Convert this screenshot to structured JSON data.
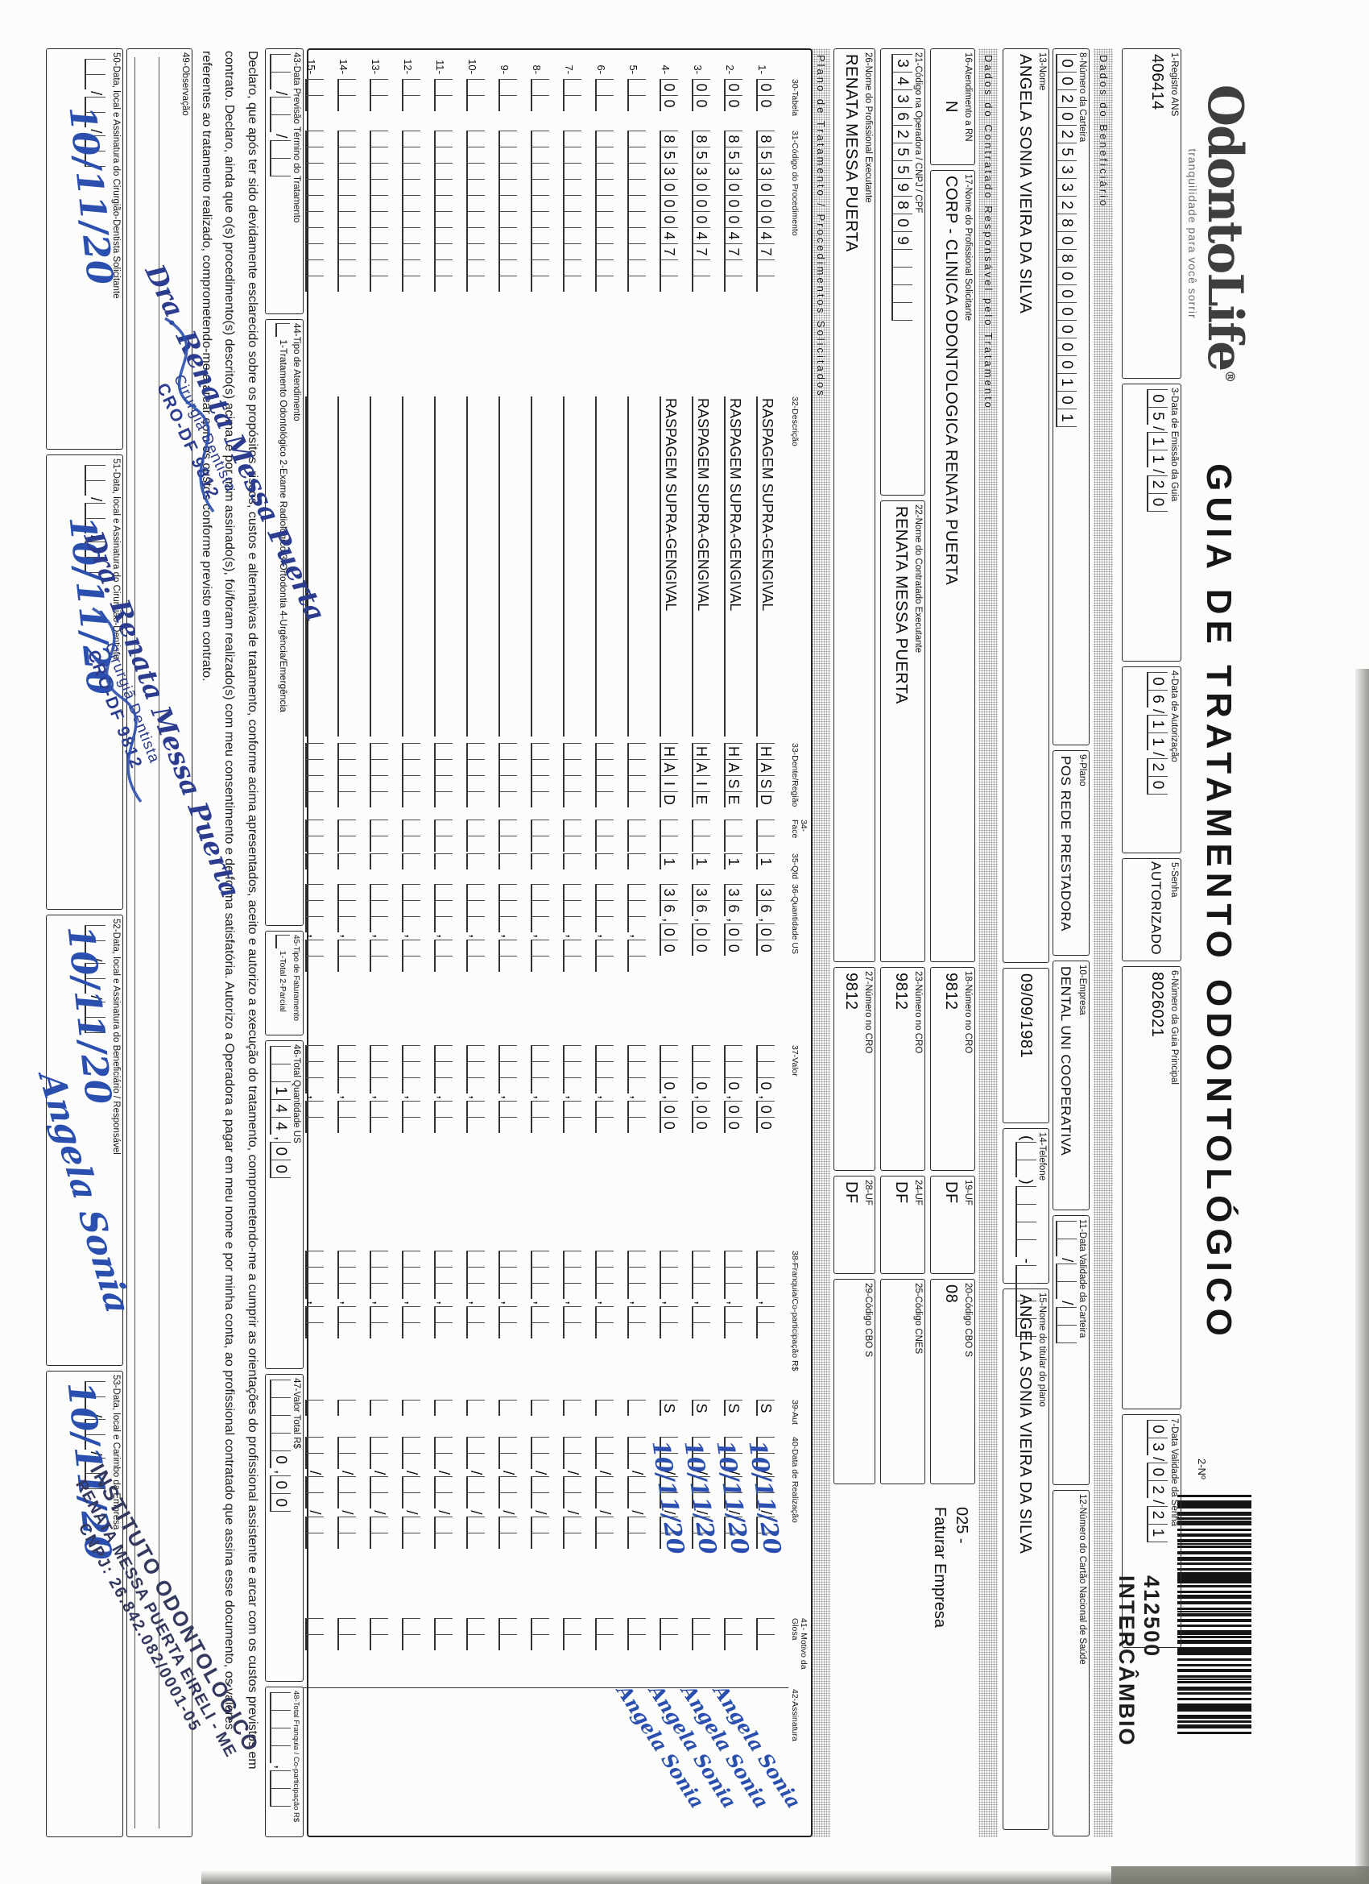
{
  "header": {
    "logo": "OdontoLife",
    "logo_reg": "®",
    "tagline": "tranquilidade para você sorrir",
    "title": "GUIA DE TRATAMENTO ODONTOLÓGICO",
    "form_no_label": "2-Nº",
    "form_code": "412500",
    "form_code2": "INTERCÂMBIO"
  },
  "row_a": {
    "f1_label": "1-Registro ANS",
    "f1_value": "406414",
    "f3_label": "3-Data de Emissão da Guia",
    "f3_value": "05/11/20",
    "f4_label": "4-Data de Autorização",
    "f4_value": "06/11/20",
    "f5_label": "5-Senha",
    "f5_value": "AUTORIZADO",
    "f6_label": "6-Número da Guia Principal",
    "f6_value": "8026021",
    "f7_label": "7-Data Validade da Senha",
    "f7_value": "03/02/21"
  },
  "section_beneficiario": "Dados do Beneficiário",
  "row_b": {
    "f8_label": "8-Número da Carteira",
    "f8_value": "002025332808000000101",
    "f9_label": "9-Plano",
    "f9_value": "POS REDE PRESTADORA",
    "f10_label": "10-Empresa",
    "f10_value": "DENTAL UNI COOPERATIVA",
    "f11_label": "11-Data Validade da Carteira",
    "f11_value": "  /  /  ",
    "f12_label": "12-Número do Cartão Nacional de Saúde",
    "f12_value": ""
  },
  "row_c": {
    "f13_label": "13-Nome",
    "f13_value": "ANGELA SONIA VIEIRA DA SILVA",
    "birth_value": "09/09/1981",
    "f14_label": "14-Telefone",
    "f14_value": "(  )    -    ",
    "f15_label": "15-Nome do titular do plano",
    "f15_value": "ANGELA SONIA VIEIRA DA SILVA"
  },
  "section_contratado": "Dados do Contratado Responsável pelo Tratamento",
  "row_d": {
    "f16_label": "16-Atendimento a RN",
    "f16_value": "N",
    "f17_label": "17-Nome do Profissional Solicitante",
    "f17_value": "CORP - CLINICA ODONTOLOGICA RENATA PUERTA",
    "f18_label": "18-Número no CRO",
    "f18_value": "9812",
    "f19_label": "19-UF",
    "f19_value": "DF",
    "f20_label": "20-Código CBO S",
    "f20_value": "08",
    "note_line1": "025 -",
    "note_line2": "Faturar Empresa"
  },
  "row_e": {
    "f21_label": "21-Código na Operadora / CNPJ / CPF",
    "f21_value": "34362559809    ",
    "f22_label": "22-Nome do Contratado Executante",
    "f22_value": "RENATA MESSA PUERTA",
    "f23_label": "23-Número no CRO",
    "f23_value": "9812",
    "f24_label": "24-UF",
    "f24_value": "DF",
    "f25_label": "25-Código CNES",
    "f25_value": "    "
  },
  "row_f": {
    "f26_label": "26-Nome do Profissional Executante",
    "f26_value": "RENATA MESSA PUERTA",
    "f27_label": "27-Número no CRO",
    "f27_value": "9812",
    "f28_label": "28-UF",
    "f28_value": "DF",
    "f29_label": "29-Código CBO S",
    "f29_value": "    "
  },
  "section_plano": "Plano de Tratamento / Procedimentos Solicitados",
  "table": {
    "headers": [
      "30-Tabela",
      "31-Código do Procedimento",
      "32-Descrição",
      "33-Dente/Região",
      "34-Face",
      "35-Qtd",
      "36-Quantidade US",
      "37-Valor",
      "38-Franquia/Co-participação R$",
      "39-Aut",
      "40-Data de Realização",
      "41- Motivo da Glosa",
      "42-Assinatura"
    ],
    "rows": [
      {
        "n": "1-",
        "tabela": "00",
        "codigo": "85300047  ",
        "descricao": "RASPAGEM SUPRA-GENGIVAL",
        "dente": "HASD",
        "face": "  ",
        "qtd": "1",
        "qtd_us": "36,00",
        "valor": "  0,00",
        "franquia": "   ,  ",
        "aut": "S",
        "data_cells": "  /  /  ",
        "data_hand": "10/11/20",
        "glosa": "  ",
        "assinatura": "Angela Sonia"
      },
      {
        "n": "2-",
        "tabela": "00",
        "codigo": "85300047  ",
        "descricao": "RASPAGEM SUPRA-GENGIVAL",
        "dente": "HASE",
        "face": "  ",
        "qtd": "1",
        "qtd_us": "36,00",
        "valor": "  0,00",
        "franquia": "   ,  ",
        "aut": "S",
        "data_cells": "  /  /  ",
        "data_hand": "10/11/20",
        "glosa": "  ",
        "assinatura": "Angela Sonia"
      },
      {
        "n": "3-",
        "tabela": "00",
        "codigo": "85300047  ",
        "descricao": "RASPAGEM SUPRA-GENGIVAL",
        "dente": "HAIE",
        "face": "  ",
        "qtd": "1",
        "qtd_us": "36,00",
        "valor": "  0,00",
        "franquia": "   ,  ",
        "aut": "S",
        "data_cells": "  /  /  ",
        "data_hand": "10/11/20",
        "glosa": "  ",
        "assinatura": "Angela Sonia"
      },
      {
        "n": "4-",
        "tabela": "00",
        "codigo": "85300047  ",
        "descricao": "RASPAGEM SUPRA-GENGIVAL",
        "dente": "HAID",
        "face": "  ",
        "qtd": "1",
        "qtd_us": "36,00",
        "valor": "  0,00",
        "franquia": "   ,  ",
        "aut": "S",
        "data_cells": "  /  /  ",
        "data_hand": "10/11/20",
        "glosa": "  ",
        "assinatura": "Angela Sonia"
      },
      {
        "n": "5-",
        "tabela": "  ",
        "codigo": "          ",
        "descricao": "",
        "dente": "    ",
        "face": "  ",
        "qtd": " ",
        "qtd_us": "   ,  ",
        "valor": "   ,  ",
        "franquia": "   ,  ",
        "aut": " ",
        "data_cells": "  /  /  ",
        "data_hand": "",
        "glosa": "  ",
        "assinatura": ""
      },
      {
        "n": "6-",
        "tabela": "  ",
        "codigo": "          ",
        "descricao": "",
        "dente": "    ",
        "face": "  ",
        "qtd": " ",
        "qtd_us": "   ,  ",
        "valor": "   ,  ",
        "franquia": "   ,  ",
        "aut": " ",
        "data_cells": "  /  /  ",
        "data_hand": "",
        "glosa": "  ",
        "assinatura": ""
      },
      {
        "n": "7-",
        "tabela": "  ",
        "codigo": "          ",
        "descricao": "",
        "dente": "    ",
        "face": "  ",
        "qtd": " ",
        "qtd_us": "   ,  ",
        "valor": "   ,  ",
        "franquia": "   ,  ",
        "aut": " ",
        "data_cells": "  /  /  ",
        "data_hand": "",
        "glosa": "  ",
        "assinatura": ""
      },
      {
        "n": "8-",
        "tabela": "  ",
        "codigo": "          ",
        "descricao": "",
        "dente": "    ",
        "face": "  ",
        "qtd": " ",
        "qtd_us": "   ,  ",
        "valor": "   ,  ",
        "franquia": "   ,  ",
        "aut": " ",
        "data_cells": "  /  /  ",
        "data_hand": "",
        "glosa": "  ",
        "assinatura": ""
      },
      {
        "n": "9-",
        "tabela": "  ",
        "codigo": "          ",
        "descricao": "",
        "dente": "    ",
        "face": "  ",
        "qtd": " ",
        "qtd_us": "   ,  ",
        "valor": "   ,  ",
        "franquia": "   ,  ",
        "aut": " ",
        "data_cells": "  /  /  ",
        "data_hand": "",
        "glosa": "  ",
        "assinatura": ""
      },
      {
        "n": "10-",
        "tabela": "  ",
        "codigo": "          ",
        "descricao": "",
        "dente": "    ",
        "face": "  ",
        "qtd": " ",
        "qtd_us": "   ,  ",
        "valor": "   ,  ",
        "franquia": "   ,  ",
        "aut": " ",
        "data_cells": "  /  /  ",
        "data_hand": "",
        "glosa": "  ",
        "assinatura": ""
      },
      {
        "n": "11-",
        "tabela": "  ",
        "codigo": "          ",
        "descricao": "",
        "dente": "    ",
        "face": "  ",
        "qtd": " ",
        "qtd_us": "   ,  ",
        "valor": "   ,  ",
        "franquia": "   ,  ",
        "aut": " ",
        "data_cells": "  /  /  ",
        "data_hand": "",
        "glosa": "  ",
        "assinatura": ""
      },
      {
        "n": "12-",
        "tabela": "  ",
        "codigo": "          ",
        "descricao": "",
        "dente": "    ",
        "face": "  ",
        "qtd": " ",
        "qtd_us": "   ,  ",
        "valor": "   ,  ",
        "franquia": "   ,  ",
        "aut": " ",
        "data_cells": "  /  /  ",
        "data_hand": "",
        "glosa": "  ",
        "assinatura": ""
      },
      {
        "n": "13-",
        "tabela": "  ",
        "codigo": "          ",
        "descricao": "",
        "dente": "    ",
        "face": "  ",
        "qtd": " ",
        "qtd_us": "   ,  ",
        "valor": "   ,  ",
        "franquia": "   ,  ",
        "aut": " ",
        "data_cells": "  /  /  ",
        "data_hand": "",
        "glosa": "  ",
        "assinatura": ""
      },
      {
        "n": "14-",
        "tabela": "  ",
        "codigo": "          ",
        "descricao": "",
        "dente": "    ",
        "face": "  ",
        "qtd": " ",
        "qtd_us": "   ,  ",
        "valor": "   ,  ",
        "franquia": "   ,  ",
        "aut": " ",
        "data_cells": "  /  /  ",
        "data_hand": "",
        "glosa": "  ",
        "assinatura": ""
      },
      {
        "n": "15-",
        "tabela": "  ",
        "codigo": "          ",
        "descricao": "",
        "dente": "    ",
        "face": "  ",
        "qtd": " ",
        "qtd_us": "   ,  ",
        "valor": "   ,  ",
        "franquia": "   ,  ",
        "aut": " ",
        "data_cells": "  /  /  ",
        "data_hand": "",
        "glosa": "  ",
        "assinatura": ""
      }
    ]
  },
  "totals_band": {
    "f43_label": "43-Data Previsão Término do Tratamento",
    "f43_value": "  /  /  ",
    "f44_label": "44-Tipo de Atendimento",
    "f44_check": " ",
    "f44_options": "1-Tratamento Odontológico  2-Exame Radiológico  3-Ortodontia  4-Urgência/Emergência",
    "f45_label": "45-Tipo de Faturamento",
    "f45_check": " ",
    "f45_options": "1-Total 2-Parcial",
    "f46_label": "46-Total Quantidade US",
    "f46_value": "  144,00",
    "f47_label": "47-Valor Total R$",
    "f47_value": "    0,00",
    "f48_label": "48-Total Franquia / Co-participação R$",
    "f48_value": "    ,  "
  },
  "declaration": {
    "line1": "Declaro, que após ter sido devidamente esclarecido sobre os propósitos, riscos, custos e alternativas de tratamento, conforme acima apresentados, aceito e autorizo a execução do tratamento, comprometendo-me a cumprir as orientações do profissional assistente e arcar com os custos previstos em",
    "line2": "contrato. Declaro, ainda que o(s) procedimento(s) descrito(s) acima, e por mim assinado(s), foi/foram realizado(s) com meu consentimento e de forma satisfatória. Autorizo a Operadora a pagar em meu nome e por minha conta, ao profissional contratado que assina esse documento, os valores",
    "line3": "referentes ao tratamento realizado, comprometendo-me a arcar com os custos conforme previsto em contrato."
  },
  "f49_label": "49-Observação",
  "sign_band": {
    "f50_label": "50-Data, local e Assinatura do Cirurgião-Dentista Solicitante",
    "f51_label": "51-Data, local e Assinatura do Cirurgião-Dentista",
    "f52_label": "52-Data, local e Assinatura do Beneficiário / Responsável",
    "f53_label": "53-Data, local e Carimbo da Empresa",
    "date_cells": "  /  /  ",
    "f50_date": "10/11/20",
    "f51_date": "10/11/20",
    "f52_date": "10/11/20",
    "f53_date": "10/11/20",
    "beneficiary_signature": "Angela Sonia"
  },
  "stamps": {
    "dentist_line1": "Dra. Renata Messa Puerta",
    "dentist_line2": "Cirurgiã Dentista",
    "dentist_line3": "CRO-DF 9812",
    "company_line1": "INSTITUTO ODONTOLÓGICO",
    "company_line2": "RENATA MESSA PUERTA EIRELI - ME",
    "company_line3": "CNPJ: 26.842.082/0001-05"
  },
  "colors": {
    "ink_blue": "#2b4fae",
    "stamp_blue": "#2c3c8f",
    "paper": "#fcfcfa"
  }
}
